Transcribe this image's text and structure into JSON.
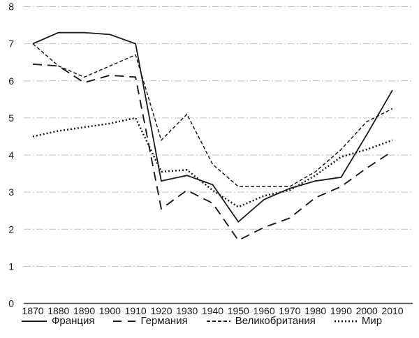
{
  "chart_data": {
    "type": "line",
    "title": "",
    "xlabel": "",
    "ylabel": "",
    "x": [
      1870,
      1880,
      1890,
      1900,
      1910,
      1920,
      1930,
      1940,
      1950,
      1960,
      1970,
      1980,
      1990,
      2000,
      2010
    ],
    "series": [
      {
        "name": "Франция",
        "dash": "solid",
        "values": [
          7.0,
          7.3,
          7.3,
          7.25,
          7.0,
          3.3,
          3.45,
          3.2,
          2.2,
          2.8,
          3.1,
          3.3,
          3.4,
          4.55,
          5.75
        ]
      },
      {
        "name": "Германия",
        "dash": "long-dash",
        "values": [
          6.45,
          6.4,
          5.95,
          6.15,
          6.1,
          2.55,
          3.05,
          2.7,
          1.7,
          2.05,
          2.3,
          2.85,
          3.15,
          3.65,
          4.1
        ]
      },
      {
        "name": "Великобритания",
        "dash": "short-dash",
        "values": [
          7.0,
          6.4,
          6.1,
          6.4,
          6.7,
          4.4,
          5.1,
          3.75,
          3.15,
          3.15,
          3.15,
          3.55,
          4.15,
          4.9,
          5.25
        ]
      },
      {
        "name": "Мир",
        "dash": "dotted",
        "values": [
          4.5,
          4.65,
          4.75,
          4.85,
          5.0,
          3.55,
          3.6,
          3.05,
          2.6,
          2.9,
          3.05,
          3.45,
          3.95,
          4.15,
          4.4
        ]
      }
    ],
    "ylim": [
      0,
      8
    ],
    "yticks": [
      0,
      1,
      2,
      3,
      4,
      5,
      6,
      7,
      8
    ],
    "xtick_labels": [
      "1870",
      "1880",
      "1890",
      "1900",
      "1910",
      "1920",
      "1930",
      "1940",
      "1950",
      "1960",
      "1970",
      "1980",
      "1990",
      "2000",
      "2010"
    ],
    "grid": "horizontal-dashed-light",
    "legend_position": "bottom",
    "line_color": "#1a1a1a",
    "grid_color": "#c3c3c3",
    "axis_color": "#4a4a4a",
    "tick_font_size": 14
  }
}
